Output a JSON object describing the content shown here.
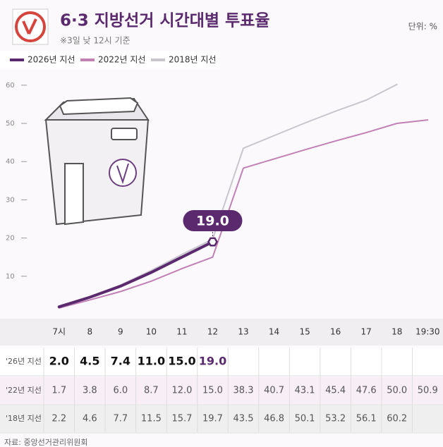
{
  "chart_data": {
    "type": "line",
    "title": "6·3 지방선거 시간대별 투표율",
    "subtitle": "※3일 낮 12시 기준",
    "unit": "단위: %",
    "source": "자료: 중앙선거관리위원회",
    "categories": [
      "7시",
      "8",
      "9",
      "10",
      "11",
      "12",
      "13",
      "14",
      "15",
      "16",
      "17",
      "18",
      "19:30"
    ],
    "series": [
      {
        "name": "2026년 지선",
        "row_label": "'26년 지선",
        "color": "#5b2a6e",
        "values": [
          2.0,
          4.5,
          7.4,
          11.0,
          15.0,
          19.0,
          null,
          null,
          null,
          null,
          null,
          null,
          null
        ],
        "value_labels": [
          "2.0",
          "4.5",
          "7.4",
          "11.0",
          "15.0",
          "19.0",
          null,
          null,
          null,
          null,
          null,
          null,
          null
        ]
      },
      {
        "name": "2022년 지선",
        "row_label": "'22년 지선",
        "color": "#c180b6",
        "values": [
          1.7,
          3.8,
          6.0,
          8.7,
          12.0,
          15.0,
          38.3,
          40.7,
          43.1,
          45.4,
          47.6,
          50.0,
          50.9
        ],
        "value_labels": [
          "1.7",
          "3.8",
          "6.0",
          "8.7",
          "12.0",
          "15.0",
          "38.3",
          "40.7",
          "43.1",
          "45.4",
          "47.6",
          "50.0",
          "50.9"
        ]
      },
      {
        "name": "2018년 지선",
        "row_label": "'18년 지선",
        "color": "#c9c5cd",
        "values": [
          2.2,
          4.6,
          7.7,
          11.5,
          15.7,
          19.7,
          43.5,
          46.8,
          50.1,
          53.2,
          56.1,
          60.2,
          null
        ],
        "value_labels": [
          "2.2",
          "4.6",
          "7.7",
          "11.5",
          "15.7",
          "19.7",
          "43.5",
          "46.8",
          "50.1",
          "53.2",
          "56.1",
          "60.2",
          null
        ]
      }
    ],
    "ylim": [
      0,
      62
    ],
    "yticks": [
      10,
      20,
      30,
      40,
      50,
      60
    ]
  }
}
